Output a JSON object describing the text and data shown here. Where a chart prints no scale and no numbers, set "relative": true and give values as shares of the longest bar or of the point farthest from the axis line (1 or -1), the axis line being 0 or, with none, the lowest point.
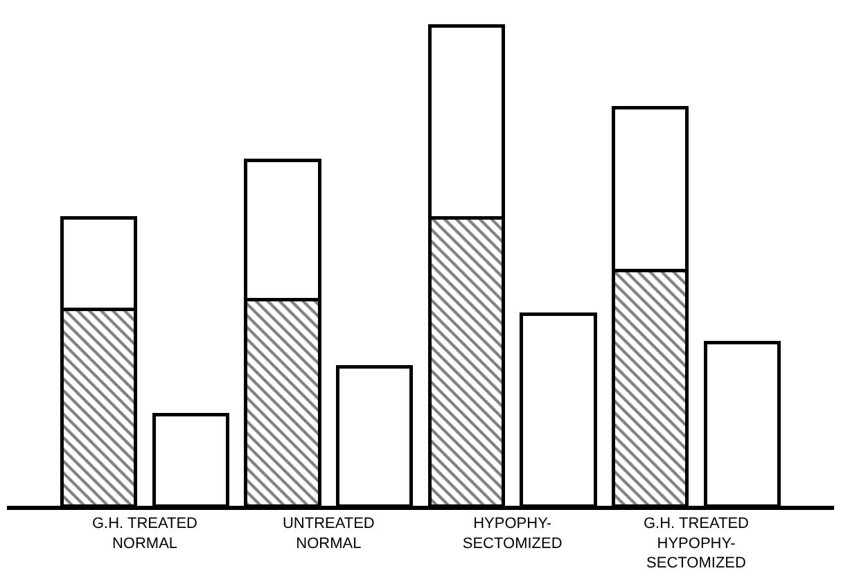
{
  "chart_data": {
    "type": "bar",
    "relative": true,
    "stacked": true,
    "categories": [
      "G.H. TREATED\nNORMAL",
      null,
      "UNTREATED\nNORMAL",
      null,
      "HYPOPHY-\nSECTOMIZED",
      null,
      "G.H. TREATED\nHYPOPHY-\nSECTOMIZED",
      null
    ],
    "series": [
      {
        "color": "#000000",
        "values": [
          0.41,
          null,
          0.43,
          null,
          0.6,
          null,
          0.49,
          null
        ]
      },
      {
        "color": "#ffffff",
        "values": [
          0.19,
          null,
          0.29,
          null,
          0.4,
          null,
          0.34,
          null
        ]
      },
      {
        "color": "#ffffff",
        "values": [
          null,
          0.19,
          null,
          0.29,
          null,
          0.4,
          null,
          0.34
        ]
      }
    ]
  }
}
